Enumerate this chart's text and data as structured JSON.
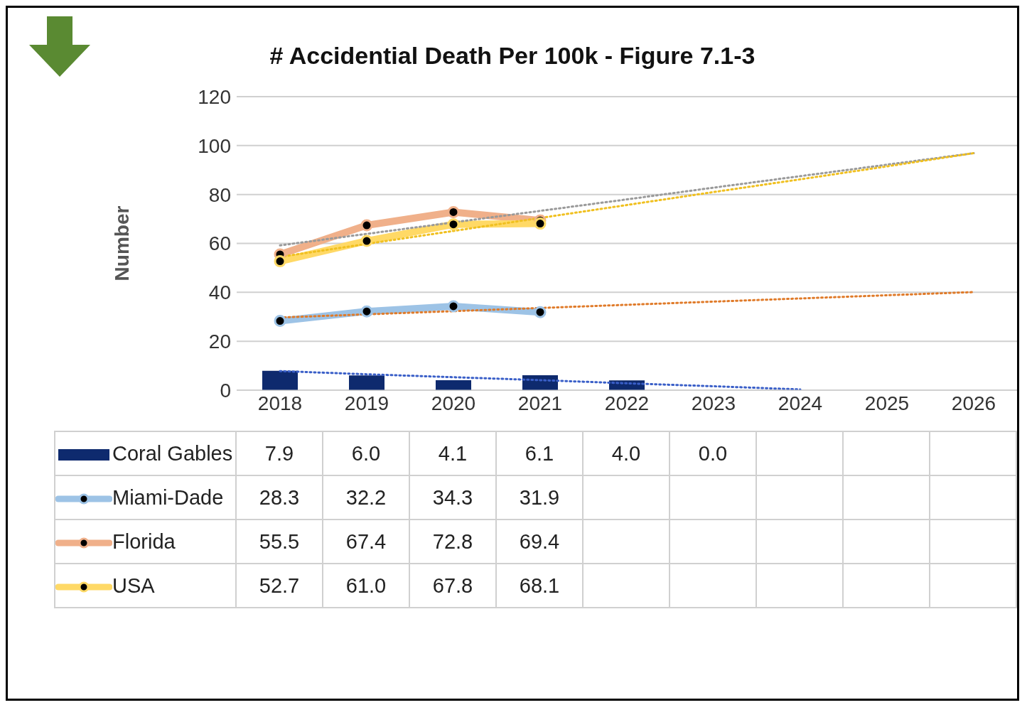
{
  "chart_data": {
    "type": "line",
    "title": "# Accidential Death Per 100k - Figure 7.1-3",
    "ylabel": "Number",
    "categories": [
      "2018",
      "2019",
      "2020",
      "2021",
      "2022",
      "2023",
      "2024",
      "2025",
      "2026"
    ],
    "ylim": [
      0,
      120
    ],
    "yticks": [
      0,
      20,
      40,
      60,
      80,
      100,
      120
    ],
    "grid": "y",
    "marker": "circle",
    "legend": "bottom",
    "series": [
      {
        "name": "Coral Gables",
        "type": "bar",
        "color": "#0e2a6e",
        "values": [
          7.9,
          6.0,
          4.1,
          6.1,
          4.0,
          0.0,
          null,
          null,
          null
        ],
        "value_labels": [
          "7.9",
          "6.0",
          "4.1",
          "6.1",
          "4.0",
          "0.0",
          null,
          null,
          null
        ]
      },
      {
        "name": "Miami-Dade",
        "color": "#9dc3e6",
        "values": [
          28.3,
          32.2,
          34.3,
          31.9,
          null,
          null,
          null,
          null,
          null
        ],
        "value_labels": [
          "28.3",
          "32.2",
          "34.3",
          "31.9",
          null,
          null,
          null,
          null,
          null
        ]
      },
      {
        "name": "Florida",
        "color": "#f0b08a",
        "values": [
          55.5,
          67.4,
          72.8,
          69.4,
          null,
          null,
          null,
          null,
          null
        ],
        "value_labels": [
          "55.5",
          "67.4",
          "72.8",
          "69.4",
          null,
          null,
          null,
          null,
          null
        ]
      },
      {
        "name": "USA",
        "color": "#ffd966",
        "values": [
          52.7,
          61.0,
          67.8,
          68.1,
          null,
          null,
          null,
          null,
          null
        ],
        "value_labels": [
          "52.7",
          "61.0",
          "67.8",
          "68.1",
          null,
          null,
          null,
          null,
          null
        ]
      },
      {
        "type": "line",
        "color": "#3a5fc8",
        "line_style": "dotted",
        "marker": "none",
        "values": [
          7.8,
          6.5,
          5.3,
          4.1,
          2.8,
          1.6,
          0.3,
          null,
          null
        ]
      },
      {
        "type": "line",
        "color": "#e07b2a",
        "line_style": "dotted",
        "marker": "none",
        "values": [
          29.7,
          31,
          32.3,
          33.6,
          34.9,
          36.2,
          37.5,
          38.8,
          40.1
        ]
      },
      {
        "type": "line",
        "color": "#9a9a9a",
        "line_style": "dotted",
        "marker": "none",
        "values": [
          59.2,
          63.9,
          68.6,
          73.3,
          78,
          82.8,
          87.5,
          92.2,
          96.9
        ]
      },
      {
        "type": "line",
        "color": "#f0c020",
        "line_style": "dotted",
        "marker": "none",
        "values": [
          54.5,
          59.8,
          65.1,
          70.4,
          75.7,
          81,
          86.2,
          91.5,
          96.9
        ]
      }
    ]
  }
}
